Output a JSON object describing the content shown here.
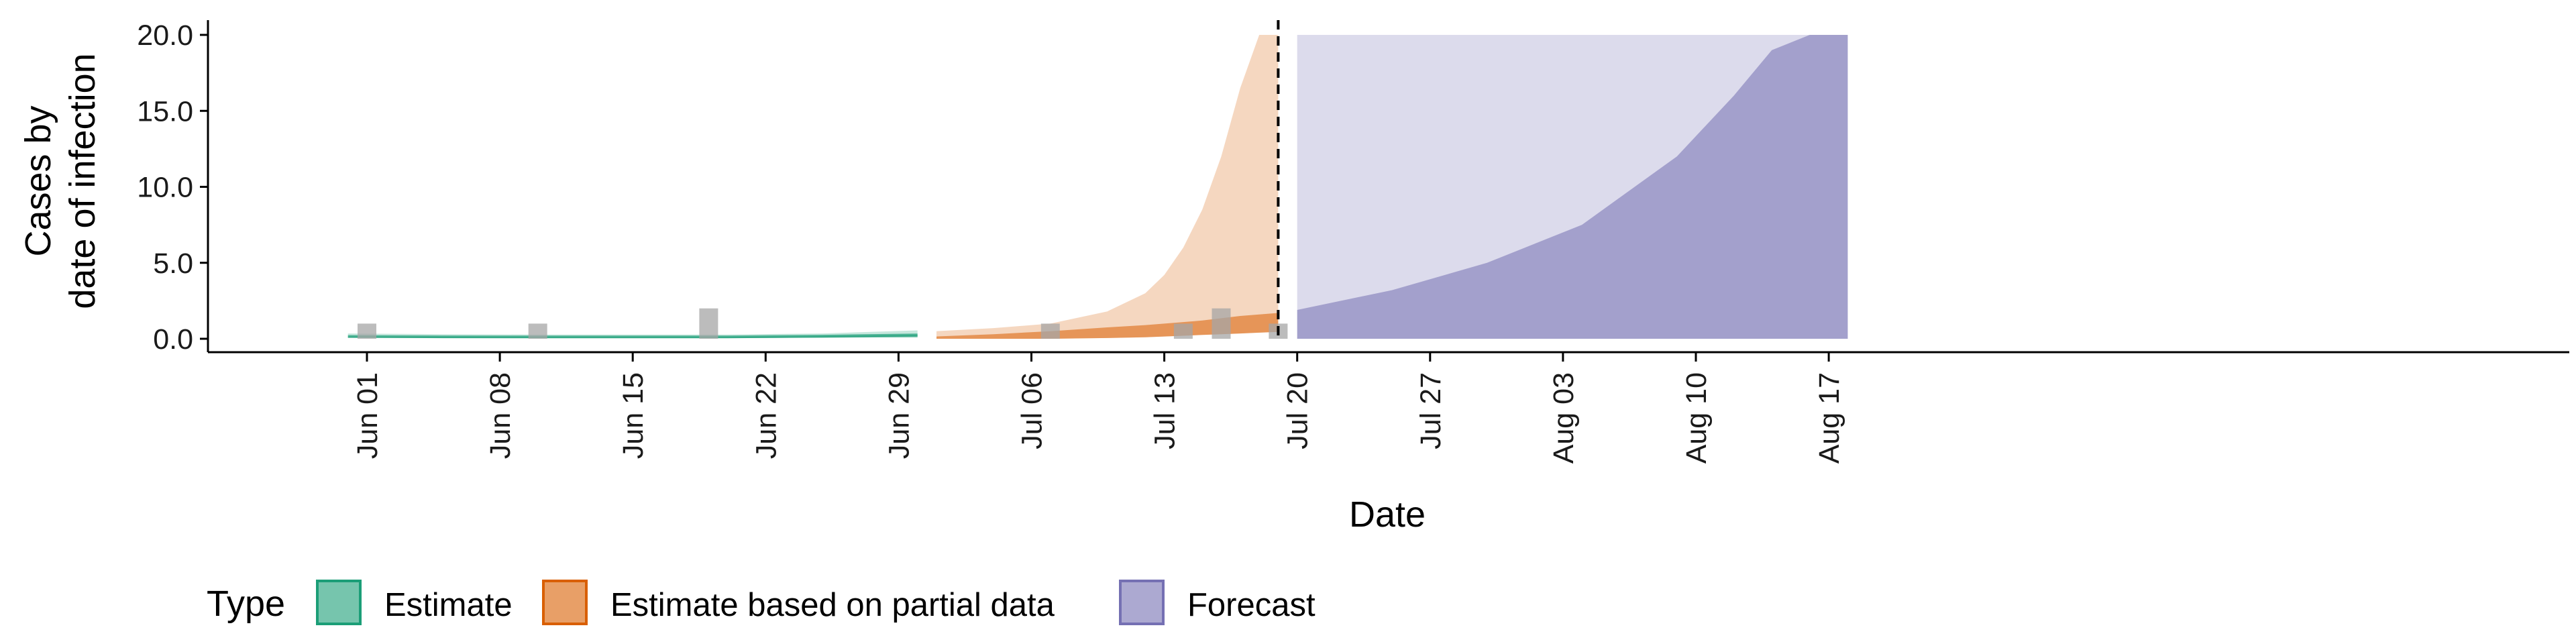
{
  "chart_data": {
    "type": "area",
    "xlabel": "Date",
    "ylabel": [
      "Cases by",
      "date of infection"
    ],
    "ylim": [
      0,
      20
    ],
    "xlim": [
      "2020-05-25",
      "2020-08-21"
    ],
    "y_ticks": [
      0,
      5,
      10,
      15,
      20
    ],
    "y_tick_labels": [
      "0.0",
      "5.0",
      "10.0",
      "15.0",
      "20.0"
    ],
    "x_ticks": [
      "2020-06-01",
      "2020-06-08",
      "2020-06-15",
      "2020-06-22",
      "2020-06-29",
      "2020-07-06",
      "2020-07-13",
      "2020-07-20",
      "2020-07-27",
      "2020-08-03",
      "2020-08-10",
      "2020-08-17"
    ],
    "x_tick_labels": [
      "Jun 01",
      "Jun 08",
      "Jun 15",
      "Jun 22",
      "Jun 29",
      "Jul 06",
      "Jul 13",
      "Jul 20",
      "Jul 27",
      "Aug 03",
      "Aug 10",
      "Aug 17"
    ],
    "reference_line_date": "2020-07-19",
    "colors": {
      "Estimate": "#1b9e77",
      "Estimate based on partial data": "#d95f02",
      "Forecast": "#7570b3",
      "observed_bars": "#a6a6a6",
      "reference_line": "#000000"
    },
    "observed_cases": {
      "dates": [
        "2020-06-01",
        "2020-06-10",
        "2020-06-19",
        "2020-07-07",
        "2020-07-14",
        "2020-07-16",
        "2020-07-19"
      ],
      "values": [
        1,
        1,
        2,
        1,
        1,
        2,
        1
      ]
    },
    "series": [
      {
        "name": "Estimate",
        "x": [
          "2020-05-31",
          "2020-06-05",
          "2020-06-10",
          "2020-06-15",
          "2020-06-20",
          "2020-06-25",
          "2020-06-30"
        ],
        "lower": [
          0.08,
          0.05,
          0.05,
          0.05,
          0.05,
          0.07,
          0.1
        ],
        "median": [
          0.15,
          0.13,
          0.12,
          0.12,
          0.12,
          0.17,
          0.25
        ],
        "upper": [
          0.35,
          0.3,
          0.28,
          0.28,
          0.28,
          0.35,
          0.55
        ]
      },
      {
        "name": "Estimate based on partial data",
        "x": [
          "2020-07-01",
          "2020-07-04",
          "2020-07-07",
          "2020-07-10",
          "2020-07-12",
          "2020-07-13",
          "2020-07-14",
          "2020-07-15",
          "2020-07-16",
          "2020-07-17",
          "2020-07-18",
          "2020-07-19"
        ],
        "lower": [
          0,
          0,
          0,
          0.05,
          0.1,
          0.15,
          0.2,
          0.25,
          0.3,
          0.35,
          0.4,
          0.45
        ],
        "inner_upper": [
          0.15,
          0.3,
          0.5,
          0.75,
          0.9,
          1.0,
          1.1,
          1.2,
          1.35,
          1.5,
          1.6,
          1.7
        ],
        "upper": [
          0.5,
          0.7,
          1.0,
          1.8,
          3.0,
          4.2,
          6.0,
          8.5,
          12.0,
          16.5,
          20.0,
          20.0
        ]
      },
      {
        "name": "Forecast",
        "x": [
          "2020-07-20",
          "2020-07-25",
          "2020-07-30",
          "2020-08-04",
          "2020-08-09",
          "2020-08-12",
          "2020-08-14",
          "2020-08-16",
          "2020-08-18"
        ],
        "lower": [
          0,
          0,
          0,
          0,
          0,
          0,
          0,
          0,
          0
        ],
        "median": [
          1.9,
          3.2,
          5.0,
          7.5,
          12.0,
          16.0,
          19.0,
          20.0,
          20.0
        ],
        "upper": [
          20,
          20,
          20,
          20,
          20,
          20,
          20,
          20,
          20
        ]
      }
    ],
    "legend": {
      "title": "Type",
      "position": "bottom",
      "items": [
        "Estimate",
        "Estimate based on partial data",
        "Forecast"
      ]
    },
    "grid": false
  }
}
